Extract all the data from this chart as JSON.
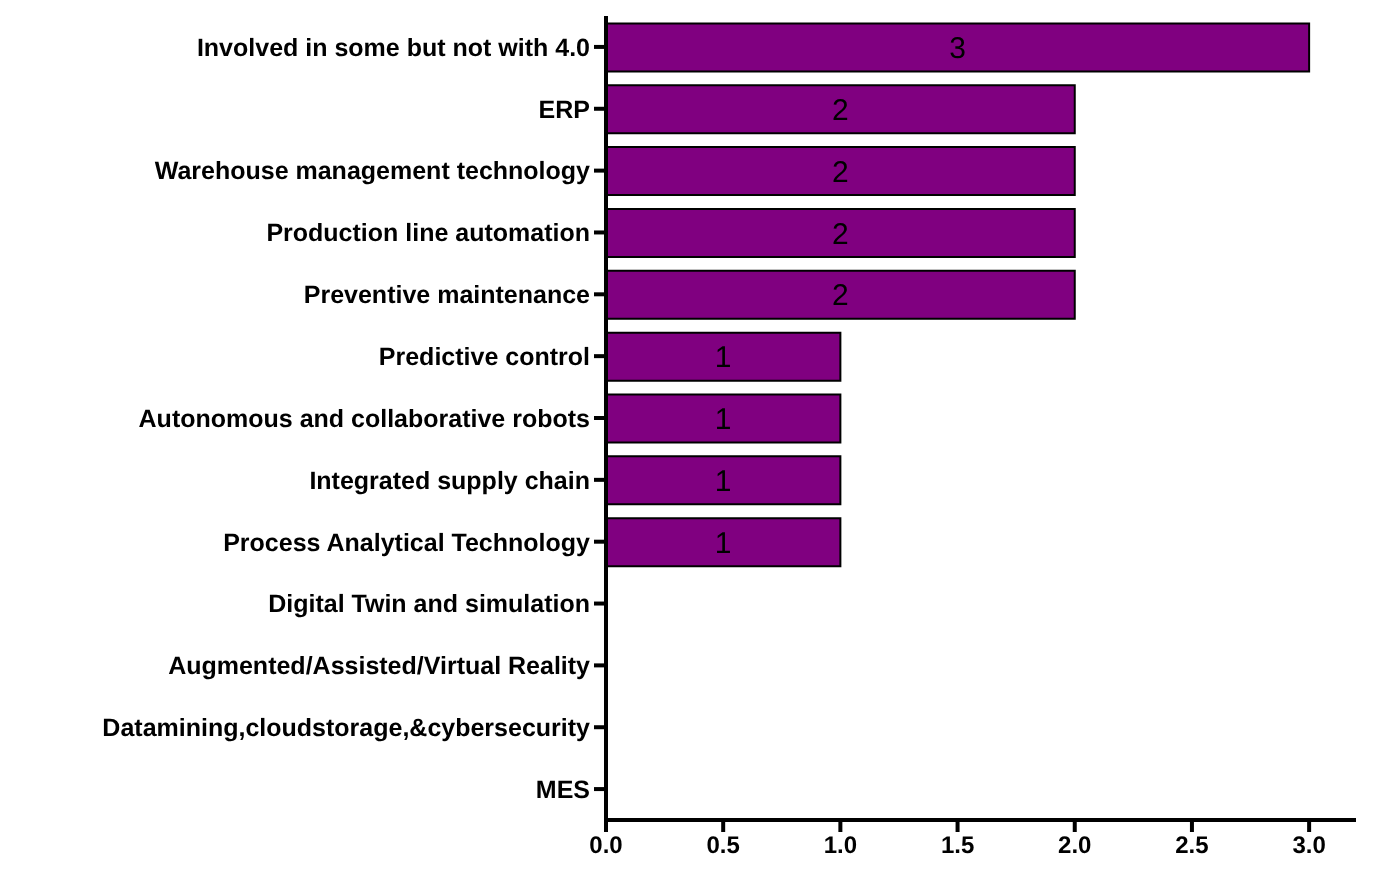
{
  "chart_data": {
    "type": "bar",
    "orientation": "horizontal",
    "categories": [
      "Involved in some but not with 4.0",
      "ERP",
      "Warehouse management technology",
      "Production line automation",
      "Preventive maintenance",
      "Predictive control",
      "Autonomous and collaborative robots",
      "Integrated supply chain",
      "Process Analytical Technology",
      "Digital Twin and simulation",
      "Augmented/Assisted/Virtual Reality",
      "Datamining,cloudstorage,&cybersecurity",
      "MES"
    ],
    "values": [
      3,
      2,
      2,
      2,
      2,
      1,
      1,
      1,
      1,
      0,
      0,
      0,
      0
    ],
    "value_labels": [
      "3",
      "2",
      "2",
      "2",
      "2",
      "1",
      "1",
      "1",
      "1",
      null,
      null,
      null,
      null
    ],
    "color": "#800080",
    "xlim": [
      0,
      3.2
    ],
    "xticks": [
      {
        "value": 0,
        "label": "0.0"
      },
      {
        "value": 0.5,
        "label": "0.5"
      },
      {
        "value": 1,
        "label": "1.0"
      },
      {
        "value": 1.5,
        "label": "1.5"
      },
      {
        "value": 2,
        "label": "2.0"
      },
      {
        "value": 2.5,
        "label": "2.5"
      },
      {
        "value": 3,
        "label": "3.0"
      }
    ],
    "grid": false,
    "legend": false
  }
}
